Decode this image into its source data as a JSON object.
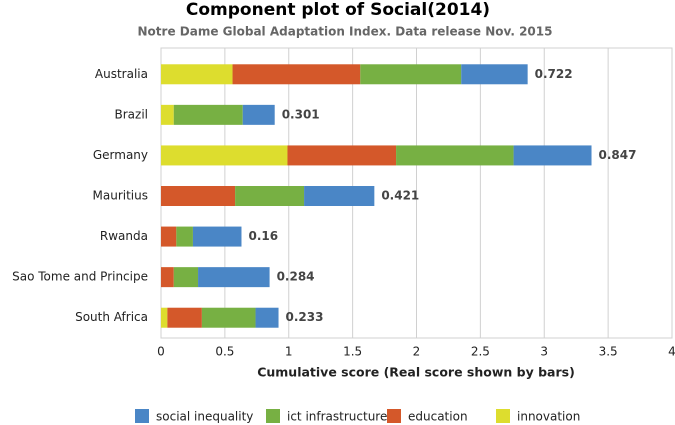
{
  "chart_data": {
    "type": "stacked_hbar",
    "title": "Component plot of Social(2014)",
    "subtitle": "Notre Dame Global Adaptation Index. Data release Nov. 2015",
    "x_label": "Cumulative score (Real score shown by bars)",
    "categories": [
      "Australia",
      "Brazil",
      "Germany",
      "Mauritius",
      "Rwanda",
      "Sao Tome and Principe",
      "South Africa"
    ],
    "series": [
      {
        "name": "social inequality",
        "color": "#4a86c6",
        "values": [
          0.52,
          0.25,
          0.61,
          0.55,
          0.38,
          0.56,
          0.18
        ]
      },
      {
        "name": "ict infrastructure",
        "color": "#77b043",
        "values": [
          0.79,
          0.54,
          0.92,
          0.54,
          0.13,
          0.19,
          0.42
        ]
      },
      {
        "name": "education",
        "color": "#d4582a",
        "values": [
          1.0,
          0,
          0.85,
          0.58,
          0.12,
          0.1,
          0.27
        ]
      },
      {
        "name": "innovation",
        "color": "#dddd2e",
        "values": [
          0.56,
          0.1,
          0.99,
          0,
          0,
          0,
          0.05
        ]
      }
    ],
    "real_scores": [
      0.722,
      0.301,
      0.847,
      0.421,
      0.16,
      0.284,
      0.233
    ],
    "xlim": [
      0,
      4
    ],
    "xticks": [
      0,
      0.5,
      1,
      1.5,
      2,
      2.5,
      3,
      3.5,
      4
    ],
    "grid": true
  }
}
